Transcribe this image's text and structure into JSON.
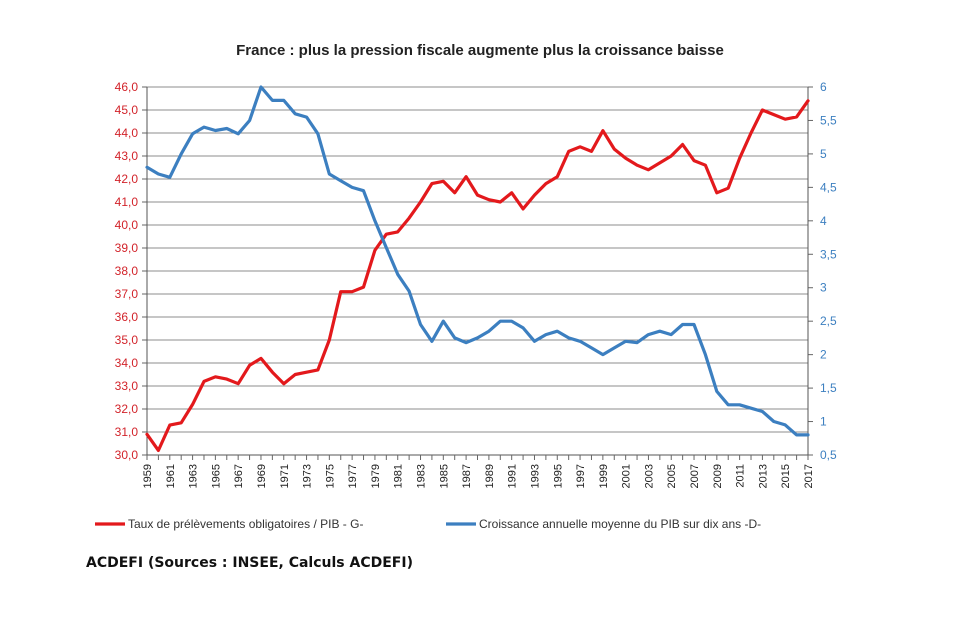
{
  "source_text": "ACDEFI (Sources : INSEE, Calculs ACDEFI)",
  "chart_data": {
    "type": "line",
    "title": "France : plus la pression fiscale augmente plus la croissance baisse",
    "x": [
      1959,
      1960,
      1961,
      1962,
      1963,
      1964,
      1965,
      1966,
      1967,
      1968,
      1969,
      1970,
      1971,
      1972,
      1973,
      1974,
      1975,
      1976,
      1977,
      1978,
      1979,
      1980,
      1981,
      1982,
      1983,
      1984,
      1985,
      1986,
      1987,
      1988,
      1989,
      1990,
      1991,
      1992,
      1993,
      1994,
      1995,
      1996,
      1997,
      1998,
      1999,
      2000,
      2001,
      2002,
      2003,
      2004,
      2005,
      2006,
      2007,
      2008,
      2009,
      2010,
      2011,
      2012,
      2013,
      2014,
      2015,
      2016,
      2017
    ],
    "x_tick_labels": [
      "1959",
      "1961",
      "1963",
      "1965",
      "1967",
      "1969",
      "1971",
      "1973",
      "1975",
      "1977",
      "1979",
      "1981",
      "1983",
      "1985",
      "1987",
      "1989",
      "1991",
      "1993",
      "1995",
      "1997",
      "1999",
      "2001",
      "2003",
      "2005",
      "2007",
      "2009",
      "2011",
      "2013",
      "2015",
      "2017"
    ],
    "y_left": {
      "min": 30.0,
      "max": 46.0,
      "step": 1.0,
      "tick_labels": [
        "30,0",
        "31,0",
        "32,0",
        "33,0",
        "34,0",
        "35,0",
        "36,0",
        "37,0",
        "38,0",
        "39,0",
        "40,0",
        "41,0",
        "42,0",
        "43,0",
        "44,0",
        "45,0",
        "46,0"
      ]
    },
    "y_right": {
      "min": 0.5,
      "max": 6.0,
      "step": 0.5,
      "tick_labels": [
        "0,5",
        "1",
        "1,5",
        "2",
        "2,5",
        "3",
        "3,5",
        "4",
        "4,5",
        "5",
        "5,5",
        "6"
      ]
    },
    "grid": true,
    "legend_position": "bottom",
    "series": [
      {
        "name": "Taux de prélèvements obligatoires / PIB - G-",
        "axis": "left",
        "color": "#e3191c",
        "values": [
          30.9,
          30.2,
          31.3,
          31.4,
          32.2,
          33.2,
          33.4,
          33.3,
          33.1,
          33.9,
          34.2,
          33.6,
          33.1,
          33.5,
          33.6,
          33.7,
          35.0,
          37.1,
          37.1,
          37.3,
          38.9,
          39.6,
          39.7,
          40.3,
          41.0,
          41.8,
          41.9,
          41.4,
          42.1,
          41.3,
          41.1,
          41.0,
          41.4,
          40.7,
          41.3,
          41.8,
          42.1,
          43.2,
          43.4,
          43.2,
          44.1,
          43.3,
          42.9,
          42.6,
          42.4,
          42.7,
          43.0,
          43.5,
          42.8,
          42.6,
          41.4,
          41.6,
          42.9,
          44.0,
          45.0,
          44.8,
          44.6,
          44.7,
          45.4
        ]
      },
      {
        "name": "Croissance annuelle moyenne du PIB sur dix ans -D-",
        "axis": "right",
        "color": "#3c7fc0",
        "values": [
          4.8,
          4.7,
          4.65,
          5.0,
          5.3,
          5.4,
          5.35,
          5.38,
          5.3,
          5.5,
          6.0,
          5.8,
          5.8,
          5.6,
          5.55,
          5.3,
          4.7,
          4.6,
          4.5,
          4.45,
          4.0,
          3.6,
          3.2,
          2.95,
          2.45,
          2.2,
          2.5,
          2.25,
          2.18,
          2.25,
          2.35,
          2.5,
          2.5,
          2.4,
          2.2,
          2.3,
          2.35,
          2.25,
          2.2,
          2.1,
          2.0,
          2.1,
          2.2,
          2.18,
          2.3,
          2.35,
          2.3,
          2.45,
          2.45,
          2.0,
          1.45,
          1.25,
          1.25,
          1.2,
          1.15,
          1.0,
          0.95,
          0.8,
          0.8
        ]
      }
    ]
  }
}
